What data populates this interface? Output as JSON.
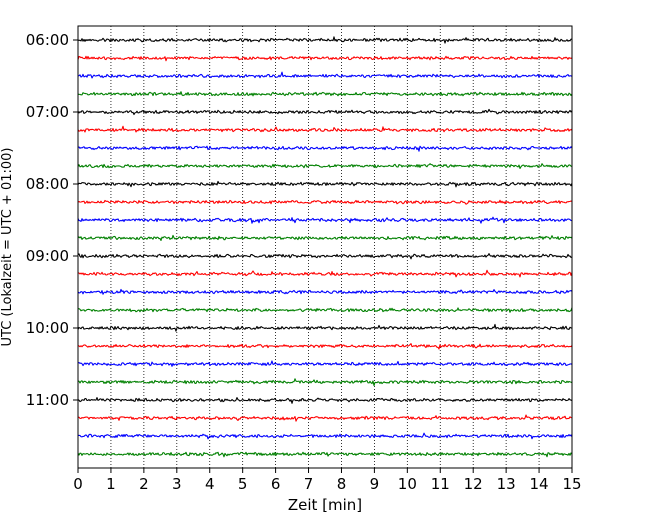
{
  "chart_data": {
    "type": "line",
    "title": "",
    "xlabel": "Zeit  [min]",
    "ylabel": "UTC (Lokalzeit = UTC + 01:00)",
    "xlim": [
      0,
      15
    ],
    "x_ticks": [
      0,
      1,
      2,
      3,
      4,
      5,
      6,
      7,
      8,
      9,
      10,
      11,
      12,
      13,
      14,
      15
    ],
    "grid": "vertical-dotted",
    "y_ticks": [
      {
        "label": "06:00",
        "trace_index": 0
      },
      {
        "label": "07:00",
        "trace_index": 4
      },
      {
        "label": "08:00",
        "trace_index": 8
      },
      {
        "label": "09:00",
        "trace_index": 12
      },
      {
        "label": "10:00",
        "trace_index": 16
      },
      {
        "label": "11:00",
        "trace_index": 20
      }
    ],
    "trace_colors": [
      "#000000",
      "#ff0000",
      "#0000ff",
      "#008000"
    ],
    "traces": [
      {
        "start": "06:00",
        "color": "#000000"
      },
      {
        "start": "06:15",
        "color": "#ff0000"
      },
      {
        "start": "06:30",
        "color": "#0000ff"
      },
      {
        "start": "06:45",
        "color": "#008000"
      },
      {
        "start": "07:00",
        "color": "#000000"
      },
      {
        "start": "07:15",
        "color": "#ff0000"
      },
      {
        "start": "07:30",
        "color": "#0000ff"
      },
      {
        "start": "07:45",
        "color": "#008000"
      },
      {
        "start": "08:00",
        "color": "#000000"
      },
      {
        "start": "08:15",
        "color": "#ff0000"
      },
      {
        "start": "08:30",
        "color": "#0000ff"
      },
      {
        "start": "08:45",
        "color": "#008000"
      },
      {
        "start": "09:00",
        "color": "#000000"
      },
      {
        "start": "09:15",
        "color": "#ff0000"
      },
      {
        "start": "09:30",
        "color": "#0000ff"
      },
      {
        "start": "09:45",
        "color": "#008000"
      },
      {
        "start": "10:00",
        "color": "#000000"
      },
      {
        "start": "10:15",
        "color": "#ff0000"
      },
      {
        "start": "10:30",
        "color": "#0000ff"
      },
      {
        "start": "10:45",
        "color": "#008000"
      },
      {
        "start": "11:00",
        "color": "#000000"
      },
      {
        "start": "11:15",
        "color": "#ff0000"
      },
      {
        "start": "11:30",
        "color": "#0000ff"
      },
      {
        "start": "11:45",
        "color": "#008000"
      }
    ]
  }
}
